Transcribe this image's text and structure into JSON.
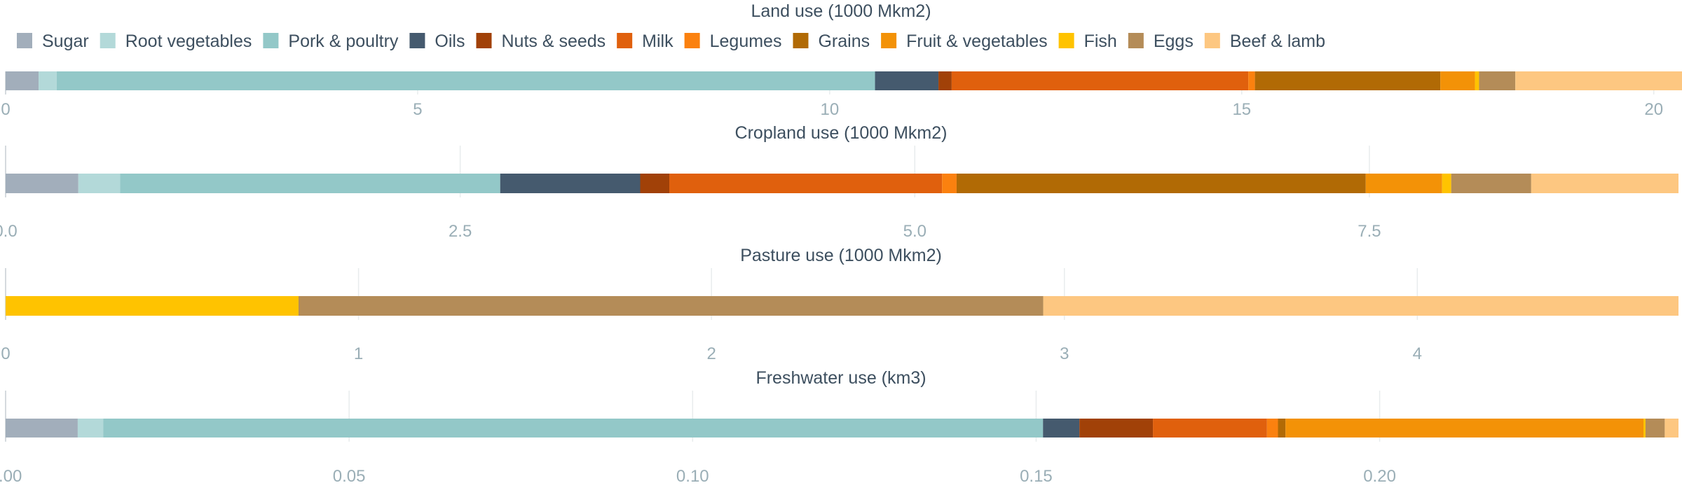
{
  "chart_data": {
    "type": "bar",
    "orientation": "horizontal",
    "stacked": true,
    "legend_placement": "top-left",
    "grid": true,
    "categories": [
      "Sugar",
      "Root vegetables",
      "Pork & poultry",
      "Oils",
      "Nuts & seeds",
      "Milk",
      "Legumes",
      "Grains",
      "Fruit & vegetables",
      "Fish",
      "Eggs",
      "Beef & lamb"
    ],
    "colors": {
      "Sugar": "#a2aebb",
      "Root vegetables": "#b3d9d9",
      "Pork & poultry": "#93c8c8",
      "Oils": "#455a6e",
      "Nuts & seeds": "#a14108",
      "Milk": "#e0600d",
      "Legumes": "#fb810f",
      "Grains": "#b16a05",
      "Fruit & vegetables": "#f39207",
      "Fish": "#ffc300",
      "Eggs": "#b48c58",
      "Beef & lamb": "#fdc781"
    },
    "panels": [
      {
        "title": "Land use (1000 Mkm2)",
        "xlim": [
          0,
          20.3
        ],
        "ticks": [
          0,
          5,
          10,
          15,
          20
        ],
        "tick_labels": [
          "0",
          "5",
          "10",
          "15",
          "20"
        ],
        "values": [
          0.4,
          0.22,
          9.93,
          0.77,
          0.16,
          3.6,
          0.08,
          2.25,
          0.42,
          0.05,
          0.44,
          2.58
        ]
      },
      {
        "title": "Cropland use (1000 Mkm2)",
        "xlim": [
          0,
          9.2
        ],
        "ticks": [
          0,
          2.5,
          5,
          7.5
        ],
        "tick_labels": [
          "0.0",
          "2.5",
          "5.0",
          "7.5"
        ],
        "values": [
          0.4,
          0.23,
          2.09,
          0.77,
          0.16,
          1.5,
          0.08,
          2.25,
          0.42,
          0.05,
          0.44,
          0.81
        ]
      },
      {
        "title": "Pasture use (1000 Mkm2)",
        "xlim": [
          0,
          4.74
        ],
        "ticks": [
          0,
          1,
          2,
          3,
          4
        ],
        "tick_labels": [
          "0",
          "1",
          "2",
          "3",
          "4"
        ],
        "values": [
          0,
          0,
          0,
          0,
          0,
          0,
          0,
          0,
          0,
          0.83,
          2.11,
          1.8
        ]
      },
      {
        "title": "Freshwater use (km3)",
        "xlim": [
          0,
          0.2435
        ],
        "ticks": [
          0,
          0.05,
          0.1,
          0.15,
          0.2
        ],
        "tick_labels": [
          "0.00",
          "0.05",
          "0.10",
          "0.15",
          "0.20"
        ],
        "values": [
          0.0105,
          0.0037,
          0.1368,
          0.0053,
          0.0107,
          0.0166,
          0.0016,
          0.0011,
          0.0521,
          0.0003,
          0.0028,
          0.002
        ]
      }
    ]
  }
}
